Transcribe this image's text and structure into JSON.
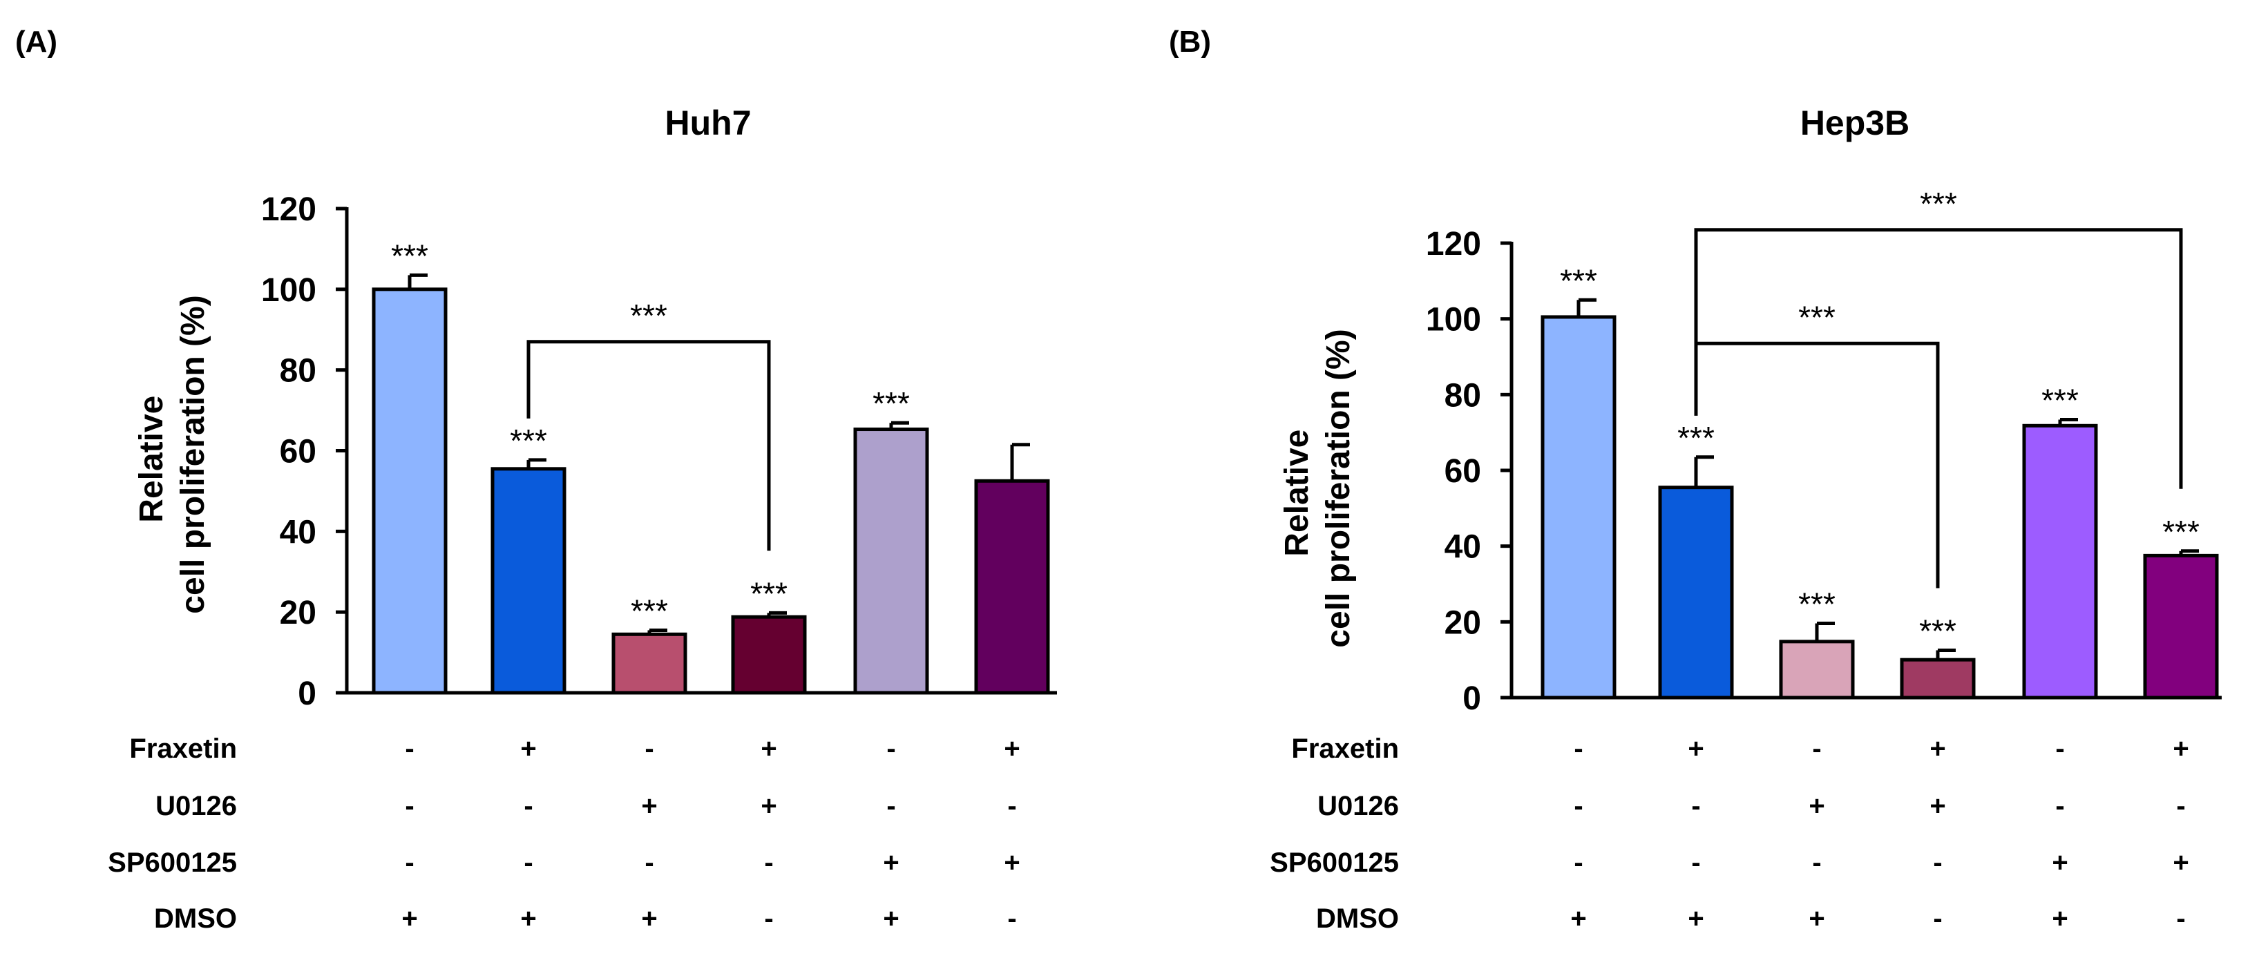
{
  "chart_data": [
    {
      "type": "bar",
      "panel_label": "(A)",
      "title": "Huh7",
      "ylabel": [
        "Relative",
        "cell proliferation (%)"
      ],
      "ylim": [
        0,
        120
      ],
      "yticks": [
        0,
        20,
        40,
        60,
        80,
        100,
        120
      ],
      "values": [
        100,
        55.5,
        14.5,
        18.8,
        65.3,
        52.5
      ],
      "errors": [
        3.5,
        2.2,
        1.0,
        1.0,
        1.6,
        9.0
      ],
      "colors": [
        "#8DB4FF",
        "#0A5BDB",
        "#B84F6E",
        "#650030",
        "#ADA0CC",
        "#62005E"
      ],
      "significance": [
        "***",
        "***",
        "***",
        "***",
        "***",
        ""
      ],
      "brackets": [
        {
          "from": 1,
          "to": 3,
          "y": 87,
          "label": "***"
        }
      ],
      "treatments": [
        {
          "name": "Fraxetin",
          "values": [
            "-",
            "+",
            "-",
            "+",
            "-",
            "+"
          ]
        },
        {
          "name": "U0126",
          "values": [
            "-",
            "-",
            "+",
            "+",
            "-",
            "-"
          ]
        },
        {
          "name": "SP600125",
          "values": [
            "-",
            "-",
            "-",
            "-",
            "+",
            "+"
          ]
        },
        {
          "name": "DMSO",
          "values": [
            "+",
            "+",
            "+",
            "-",
            "+",
            "-"
          ]
        }
      ]
    },
    {
      "type": "bar",
      "panel_label": "(B)",
      "title": "Hep3B",
      "ylabel": [
        "Relative",
        "cell proliferation (%)"
      ],
      "ylim": [
        0,
        120
      ],
      "yticks": [
        0,
        20,
        40,
        60,
        80,
        100,
        120
      ],
      "values": [
        100.5,
        55.5,
        14.8,
        10.0,
        71.8,
        37.5
      ],
      "errors": [
        4.5,
        8.0,
        4.8,
        2.5,
        1.6,
        1.2
      ],
      "colors": [
        "#8DB4FF",
        "#0A5BDB",
        "#D9A4B8",
        "#9F3A62",
        "#9D5CFF",
        "#82007E"
      ],
      "significance": [
        "***",
        "***",
        "***",
        "***",
        "***",
        "***"
      ],
      "brackets": [
        {
          "from": 1,
          "to": 3,
          "y": 93.5,
          "label": "***"
        },
        {
          "from": 1,
          "to": 5,
          "y": 123.5,
          "label": "***"
        }
      ],
      "treatments": [
        {
          "name": "Fraxetin",
          "values": [
            "-",
            "+",
            "-",
            "+",
            "-",
            "+"
          ]
        },
        {
          "name": "U0126",
          "values": [
            "-",
            "-",
            "+",
            "+",
            "-",
            "-"
          ]
        },
        {
          "name": "SP600125",
          "values": [
            "-",
            "-",
            "-",
            "-",
            "+",
            "+"
          ]
        },
        {
          "name": "DMSO",
          "values": [
            "+",
            "+",
            "+",
            "-",
            "+",
            "-"
          ]
        }
      ]
    }
  ]
}
